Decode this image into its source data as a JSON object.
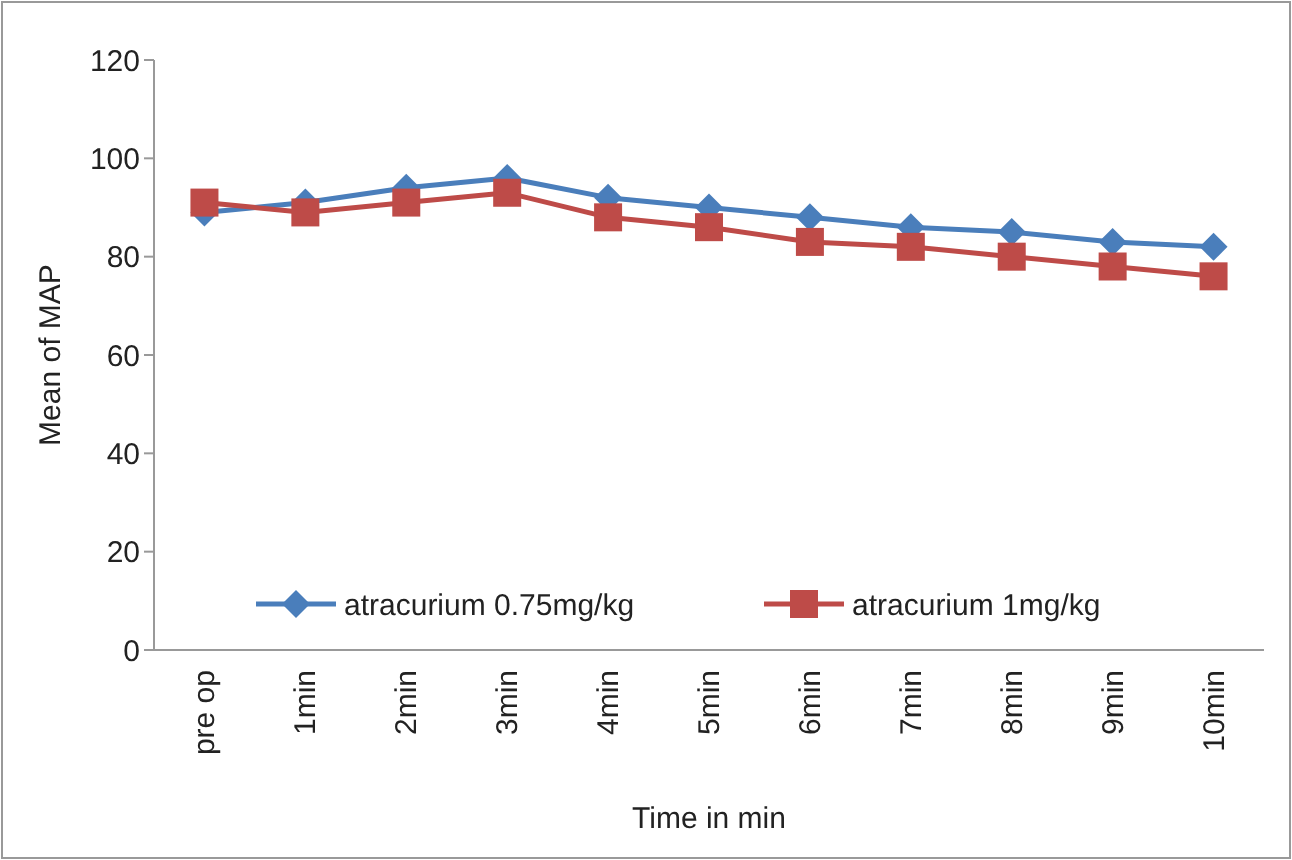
{
  "chart_data": {
    "type": "line",
    "xlabel": "Time in min",
    "ylabel": "Mean of MAP",
    "categories": [
      "pre op",
      "1min",
      "2min",
      "3min",
      "4min",
      "5min",
      "6min",
      "7min",
      "8min",
      "9min",
      "10min"
    ],
    "series": [
      {
        "name": "atracurium 0.75mg/kg",
        "color": "#4a7ebb",
        "marker": "diamond",
        "values": [
          89,
          91,
          94,
          96,
          92,
          90,
          88,
          86,
          85,
          83,
          82
        ]
      },
      {
        "name": "atracurium 1mg/kg",
        "color": "#be4b48",
        "marker": "square",
        "values": [
          91,
          89,
          91,
          93,
          88,
          86,
          83,
          82,
          80,
          78,
          76
        ]
      }
    ],
    "ylim": [
      0,
      120
    ],
    "yticks": [
      0,
      20,
      40,
      60,
      80,
      100,
      120
    ],
    "grid": false,
    "legend": "bottom"
  }
}
